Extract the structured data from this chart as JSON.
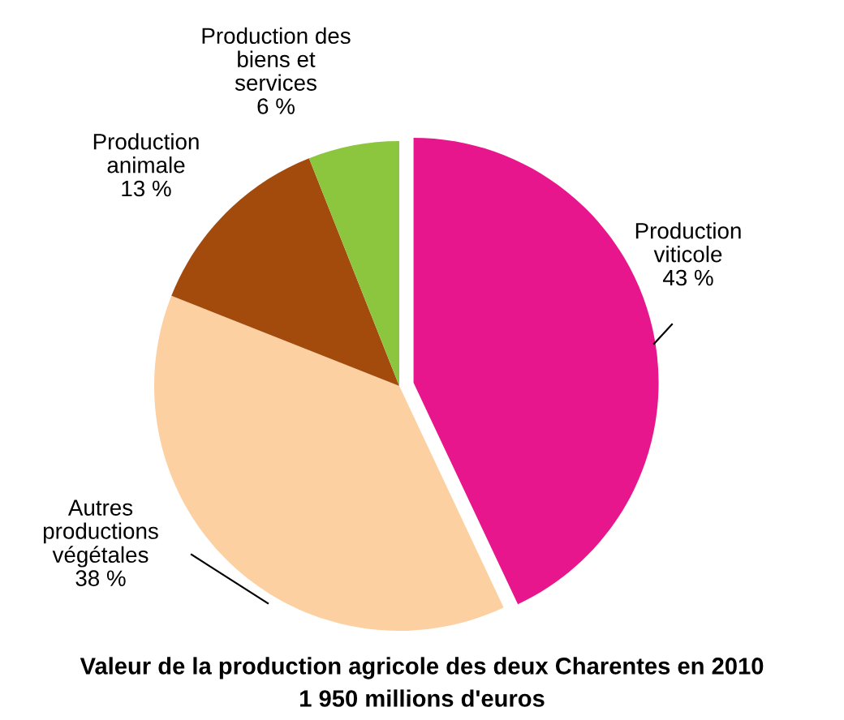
{
  "chart_data": {
    "type": "pie",
    "title": "Valeur de la production agricole des deux Charentes en 2010",
    "subtitle": "1 950 millions d'euros",
    "categories": [
      "Production\nviticole",
      "Autres\nproductions\nvégétales",
      "Production\nanimale",
      "Production des\nbiens et\nservices"
    ],
    "values": [
      43,
      38,
      13,
      6
    ],
    "colors": [
      "#e8168c",
      "#fdd0a2",
      "#a34b0c",
      "#8cc63f"
    ],
    "value_labels": [
      "43 %",
      "38 %",
      "13 %",
      "6 %"
    ]
  }
}
